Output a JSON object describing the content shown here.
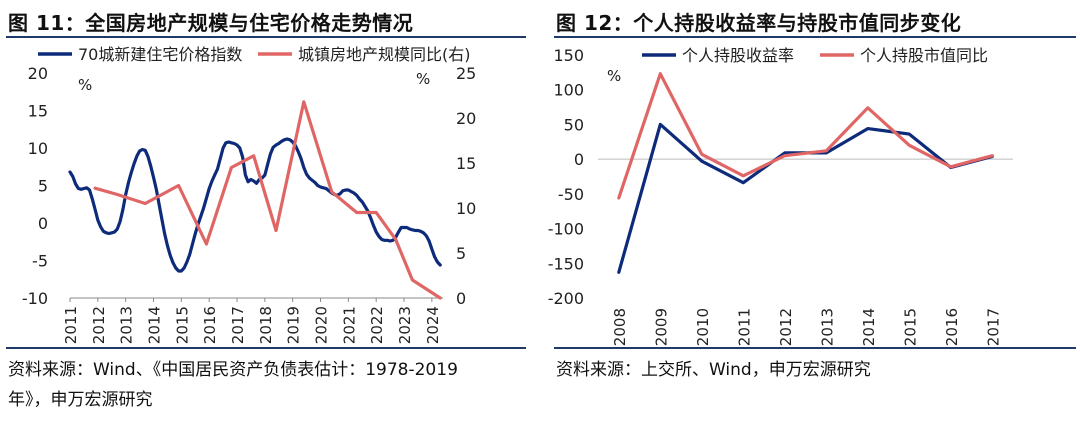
{
  "colors": {
    "navy": "#0d2b7a",
    "red": "#e06666",
    "rule": "#1f3a68",
    "axis": "#888888"
  },
  "left": {
    "title": "图 11：全国房地产规模与住宅价格走势情况",
    "source_line1": "资料来源：Wind、《中国居民资产负债表估计：1978-2019",
    "source_line2": "年》，申万宏源研究"
  },
  "right": {
    "title": "图 12：个人持股收益率与持股市值同步变化",
    "source": "资料来源：上交所、Wind，申万宏源研究"
  },
  "chart_data": [
    {
      "type": "line",
      "title": "全国房地产规模与住宅价格走势情况",
      "ylabel_left_unit": "%",
      "ylabel_right_unit": "%",
      "ylim_left": [
        -10,
        20
      ],
      "yticks_left": [
        -10,
        -5,
        0,
        5,
        10,
        15,
        20
      ],
      "ylim_right": [
        0,
        25
      ],
      "yticks_right": [
        0,
        5,
        10,
        15,
        20,
        25
      ],
      "xlim": [
        2011,
        2024.4
      ],
      "xticks": [
        "2011",
        "2012",
        "2013",
        "2014",
        "2015",
        "2016",
        "2017",
        "2018",
        "2019",
        "2020",
        "2021",
        "2022",
        "2023",
        "2024"
      ],
      "legend_position": "top",
      "series": [
        {
          "name": "70城新建住宅价格指数",
          "axis": "left",
          "color": "#0d2b7a",
          "x": [
            2011.0,
            2011.1,
            2011.2,
            2011.3,
            2011.4,
            2011.5,
            2011.6,
            2011.7,
            2011.8,
            2011.9,
            2012.0,
            2012.1,
            2012.2,
            2012.3,
            2012.4,
            2012.5,
            2012.6,
            2012.7,
            2012.8,
            2012.9,
            2013.0,
            2013.1,
            2013.2,
            2013.3,
            2013.4,
            2013.5,
            2013.6,
            2013.7,
            2013.8,
            2013.9,
            2014.0,
            2014.1,
            2014.2,
            2014.3,
            2014.4,
            2014.5,
            2014.6,
            2014.7,
            2014.8,
            2014.9,
            2015.0,
            2015.1,
            2015.2,
            2015.3,
            2015.4,
            2015.5,
            2015.6,
            2015.7,
            2015.8,
            2015.9,
            2016.0,
            2016.1,
            2016.2,
            2016.3,
            2016.4,
            2016.5,
            2016.6,
            2016.7,
            2016.8,
            2016.9,
            2017.0,
            2017.1,
            2017.2,
            2017.3,
            2017.4,
            2017.5,
            2017.6,
            2017.7,
            2017.8,
            2017.9,
            2018.0,
            2018.1,
            2018.2,
            2018.3,
            2018.4,
            2018.5,
            2018.6,
            2018.7,
            2018.8,
            2018.9,
            2019.0,
            2019.1,
            2019.2,
            2019.3,
            2019.4,
            2019.5,
            2019.6,
            2019.7,
            2019.8,
            2019.9,
            2020.0,
            2020.1,
            2020.2,
            2020.3,
            2020.4,
            2020.5,
            2020.6,
            2020.7,
            2020.8,
            2020.9,
            2021.0,
            2021.1,
            2021.2,
            2021.3,
            2021.4,
            2021.5,
            2021.6,
            2021.7,
            2021.8,
            2021.9,
            2022.0,
            2022.1,
            2022.2,
            2022.3,
            2022.4,
            2022.5,
            2022.6,
            2022.7,
            2022.8,
            2022.9,
            2023.0,
            2023.1,
            2023.2,
            2023.3,
            2023.4,
            2023.5,
            2023.6,
            2023.7,
            2023.8,
            2023.9,
            2024.0,
            2024.1,
            2024.2,
            2024.3
          ],
          "values": [
            6.8,
            6.2,
            5.2,
            4.6,
            4.5,
            4.6,
            4.7,
            4.4,
            3.2,
            1.8,
            0.4,
            -0.5,
            -1.1,
            -1.3,
            -1.4,
            -1.3,
            -1.2,
            -0.8,
            0.2,
            1.8,
            3.8,
            5.4,
            6.7,
            7.9,
            8.9,
            9.6,
            9.8,
            9.7,
            8.9,
            7.6,
            6.1,
            4.5,
            2.5,
            0.5,
            -1.4,
            -3.0,
            -4.3,
            -5.3,
            -6.0,
            -6.4,
            -6.4,
            -6.0,
            -5.2,
            -4.2,
            -2.8,
            -1.4,
            -0.2,
            0.9,
            2.0,
            3.3,
            4.6,
            5.6,
            6.4,
            7.2,
            8.6,
            10.0,
            10.7,
            10.8,
            10.7,
            10.6,
            10.4,
            10.0,
            8.8,
            6.4,
            5.5,
            5.8,
            5.6,
            5.3,
            5.8,
            6.0,
            6.4,
            7.8,
            9.2,
            10.1,
            10.4,
            10.6,
            10.9,
            11.1,
            11.2,
            11.1,
            10.8,
            10.3,
            9.5,
            8.6,
            7.4,
            6.5,
            6.0,
            5.7,
            5.4,
            5.0,
            4.8,
            4.7,
            4.6,
            4.3,
            4.0,
            3.8,
            3.7,
            3.9,
            4.3,
            4.4,
            4.4,
            4.2,
            4.0,
            3.7,
            3.2,
            2.8,
            2.2,
            1.6,
            0.7,
            -0.3,
            -1.2,
            -1.8,
            -2.2,
            -2.3,
            -2.3,
            -2.4,
            -2.3,
            -1.9,
            -1.2,
            -0.6,
            -0.6,
            -0.6,
            -0.8,
            -0.9,
            -1.0,
            -1.0,
            -1.1,
            -1.3,
            -1.7,
            -2.4,
            -3.5,
            -4.5,
            -5.2,
            -5.6
          ]
        },
        {
          "name": "城镇房地产规模同比(右)",
          "axis": "right",
          "color": "#e06666",
          "x": [
            2011.9,
            2012.7,
            2013.7,
            2014.9,
            2015.9,
            2016.8,
            2017.6,
            2018.4,
            2019.4,
            2020.4,
            2021.3,
            2022.0,
            2022.7,
            2023.3,
            2024.3
          ],
          "values": [
            12.2,
            11.5,
            10.5,
            12.5,
            6.0,
            14.5,
            15.8,
            7.5,
            21.8,
            11.8,
            9.5,
            9.5,
            6.5,
            2.0,
            0.0
          ]
        }
      ]
    },
    {
      "type": "line",
      "title": "个人持股收益率与持股市值同步变化",
      "ylabel_unit": "%",
      "ylim": [
        -200,
        150
      ],
      "yticks": [
        -200,
        -150,
        -100,
        -50,
        0,
        50,
        100,
        150
      ],
      "categories": [
        "2008",
        "2009",
        "2010",
        "2011",
        "2012",
        "2013",
        "2014",
        "2015",
        "2016",
        "2017"
      ],
      "legend_position": "top",
      "series": [
        {
          "name": "个人持股收益率",
          "color": "#0d2b7a",
          "values": [
            -163,
            50,
            -3,
            -34,
            9,
            9,
            44,
            36,
            -12,
            4
          ]
        },
        {
          "name": "个人持股市值同比",
          "color": "#e06666",
          "values": [
            -56,
            123,
            7,
            -24,
            5,
            12,
            74,
            20,
            -11,
            5
          ]
        }
      ]
    }
  ]
}
